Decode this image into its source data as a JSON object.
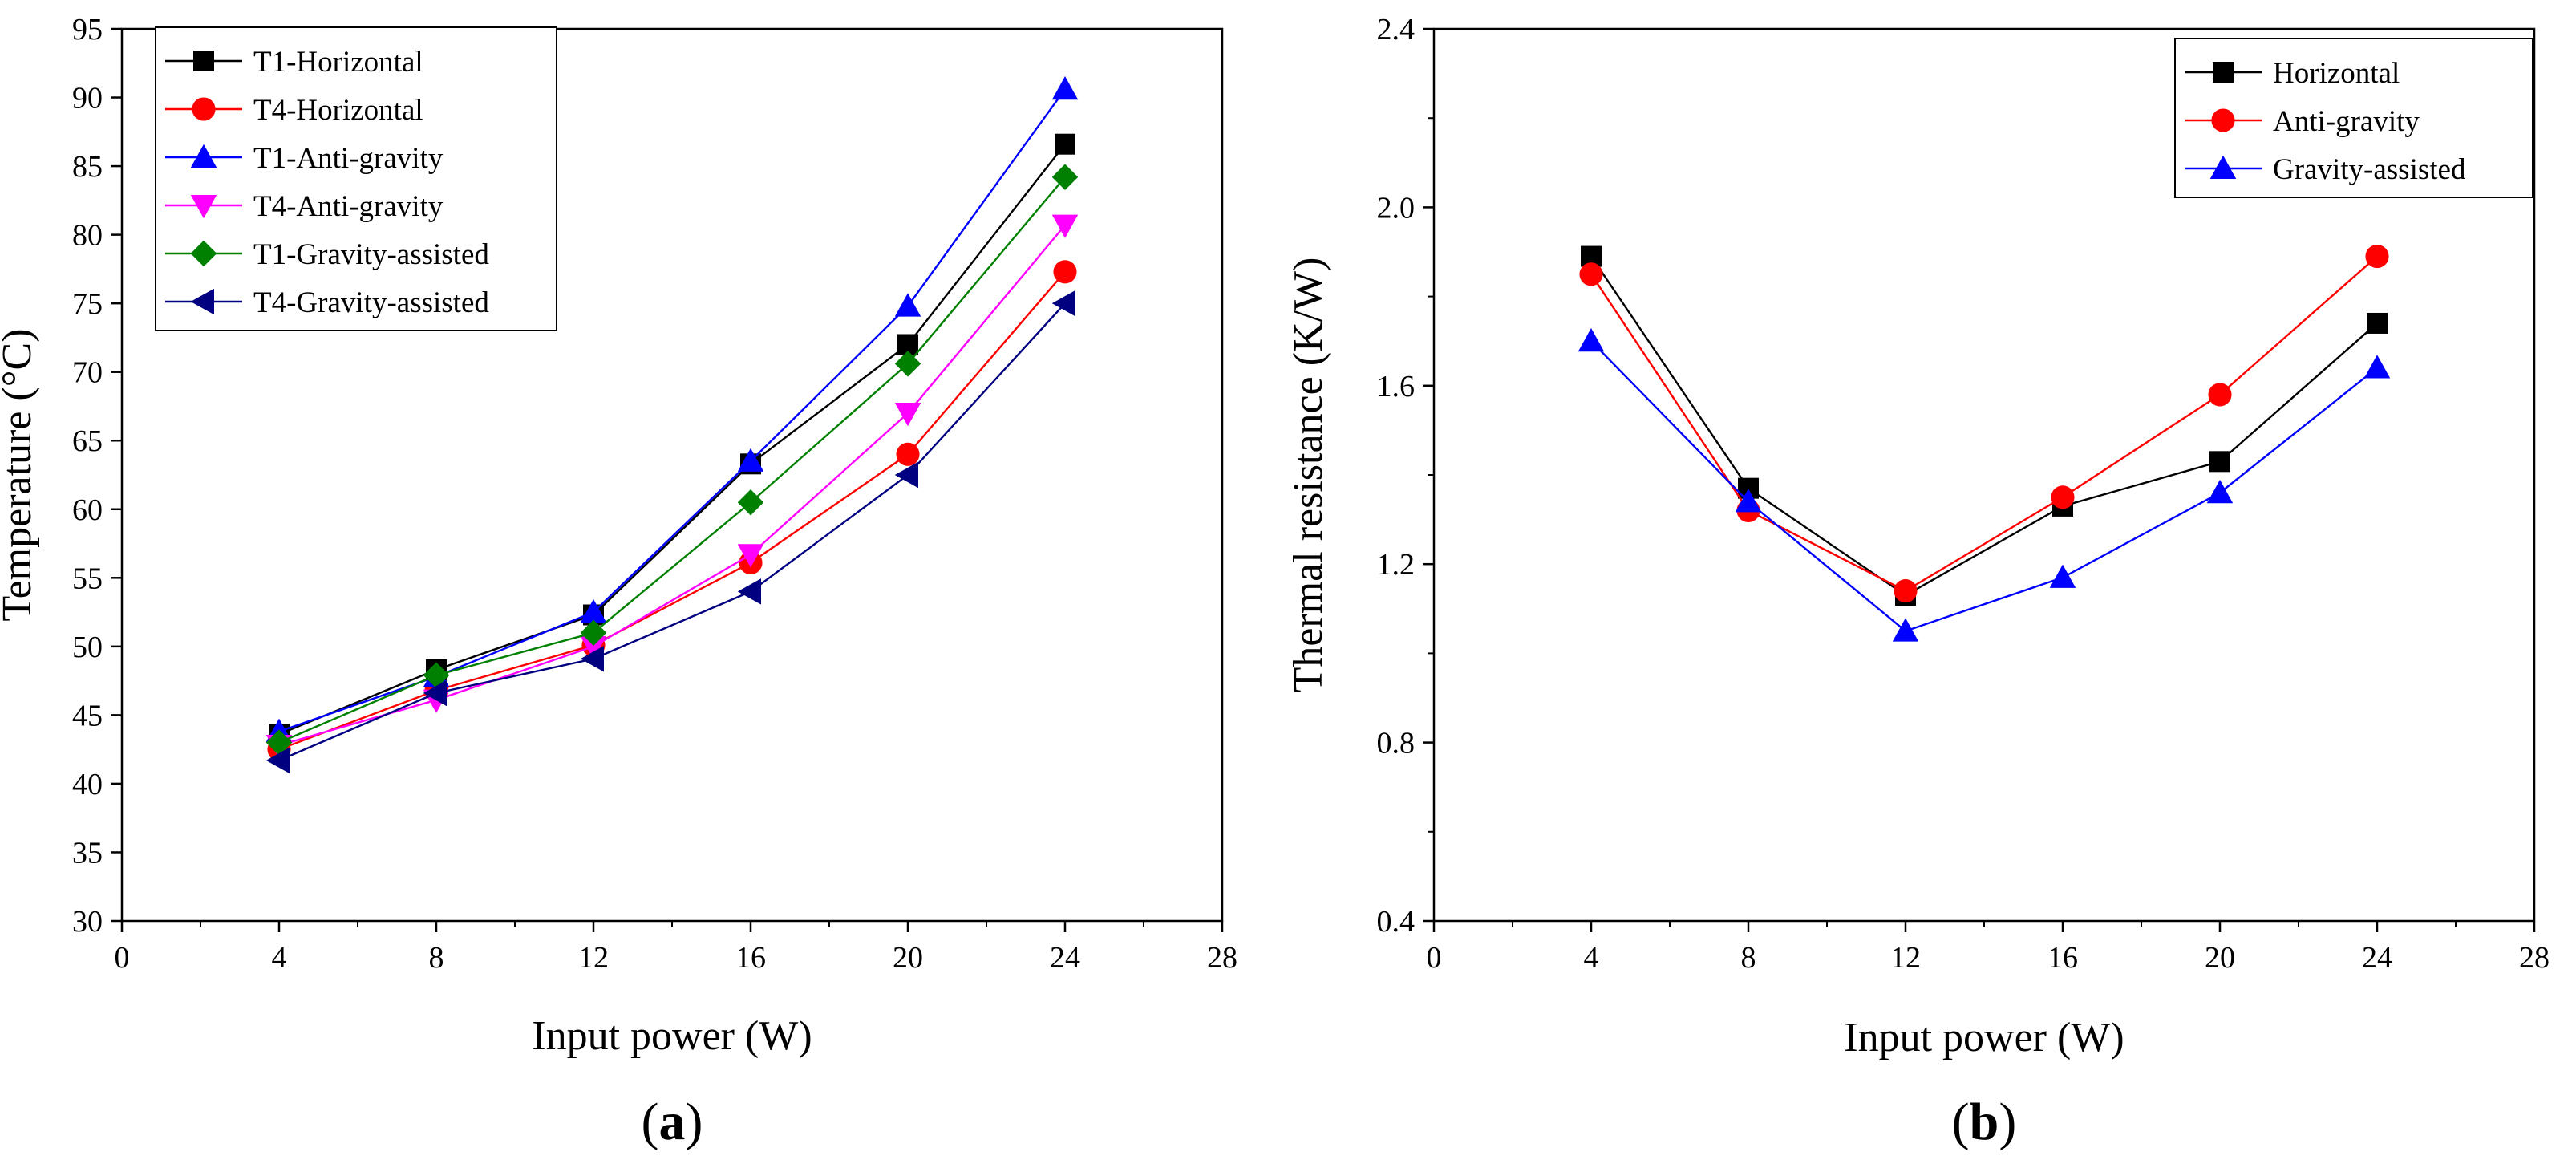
{
  "colors": {
    "black": "#000000",
    "red": "#ff0000",
    "blue": "#0000ff",
    "magenta": "#ff00ff",
    "green": "#008000",
    "navy": "#000080"
  },
  "chart_data": [
    {
      "type": "line",
      "panel_label": "a",
      "xlabel": "Input power (W)",
      "ylabel": "Temperature (°C)",
      "xlim": [
        0,
        28
      ],
      "ylim": [
        30,
        95
      ],
      "x_ticks": [
        0,
        4,
        8,
        12,
        16,
        20,
        24,
        28
      ],
      "y_ticks": [
        30,
        35,
        40,
        45,
        50,
        55,
        60,
        65,
        70,
        75,
        80,
        85,
        90,
        95
      ],
      "x_tick_labels": [
        "0",
        "4",
        "8",
        "12",
        "16",
        "20",
        "24",
        "28"
      ],
      "y_tick_labels": [
        "30",
        "35",
        "40",
        "45",
        "50",
        "55",
        "60",
        "65",
        "70",
        "75",
        "80",
        "85",
        "90",
        "95"
      ],
      "grid": false,
      "legend_position": "top-left",
      "x": [
        4,
        8,
        12,
        16,
        20,
        24
      ],
      "series": [
        {
          "name": "T1-Horizontal",
          "color": "#000000",
          "marker": "square",
          "values": [
            43.6,
            48.3,
            52.3,
            63.3,
            72.0,
            86.6
          ]
        },
        {
          "name": "T4-Horizontal",
          "color": "#ff0000",
          "marker": "circle",
          "values": [
            42.5,
            46.8,
            50.1,
            56.1,
            64.0,
            77.3
          ]
        },
        {
          "name": "T1-Anti-gravity",
          "color": "#0000ff",
          "marker": "triangle-up",
          "values": [
            43.8,
            47.8,
            52.5,
            63.5,
            74.8,
            90.6
          ]
        },
        {
          "name": "T4-Anti-gravity",
          "color": "#ff00ff",
          "marker": "triangle-down",
          "values": [
            42.8,
            46.1,
            50.0,
            56.7,
            67.0,
            80.7
          ]
        },
        {
          "name": "T1-Gravity-assisted",
          "color": "#008000",
          "marker": "diamond",
          "values": [
            43.0,
            47.9,
            51.0,
            60.5,
            70.6,
            84.2
          ]
        },
        {
          "name": "T4-Gravity-assisted",
          "color": "#000080",
          "marker": "triangle-left",
          "values": [
            41.7,
            46.6,
            49.1,
            54.0,
            62.5,
            75.0
          ]
        }
      ]
    },
    {
      "type": "line",
      "panel_label": "b",
      "xlabel": "Input power (W)",
      "ylabel": "Thermal resistance (K/W)",
      "xlim": [
        0,
        28
      ],
      "ylim": [
        0.4,
        2.4
      ],
      "x_ticks": [
        0,
        4,
        8,
        12,
        16,
        20,
        24,
        28
      ],
      "y_ticks": [
        0.4,
        0.8,
        1.2,
        1.6,
        2.0,
        2.4
      ],
      "x_tick_labels": [
        "0",
        "4",
        "8",
        "12",
        "16",
        "20",
        "24",
        "28"
      ],
      "y_tick_labels": [
        "0.4",
        "0.8",
        "1.2",
        "1.6",
        "2.0",
        "2.4"
      ],
      "grid": false,
      "legend_position": "top-right",
      "x": [
        4,
        8,
        12,
        16,
        20,
        24
      ],
      "series": [
        {
          "name": "Horizontal",
          "color": "#000000",
          "marker": "square",
          "values": [
            1.89,
            1.37,
            1.13,
            1.33,
            1.43,
            1.74
          ]
        },
        {
          "name": "Anti-gravity",
          "color": "#ff0000",
          "marker": "circle",
          "values": [
            1.85,
            1.32,
            1.14,
            1.35,
            1.58,
            1.89
          ]
        },
        {
          "name": "Gravity-assisted",
          "color": "#0000ff",
          "marker": "triangle-up",
          "values": [
            1.7,
            1.34,
            1.05,
            1.17,
            1.36,
            1.64
          ]
        }
      ]
    }
  ]
}
